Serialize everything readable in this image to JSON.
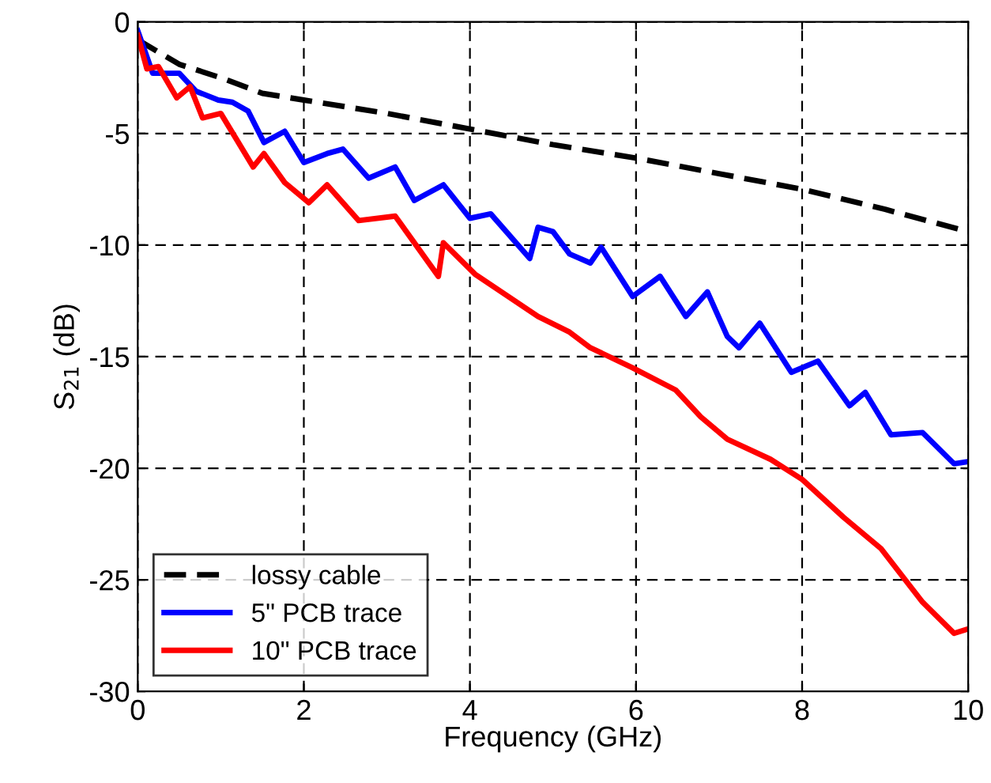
{
  "chart_data": {
    "type": "line",
    "xlabel": "Frequency (GHz)",
    "ylabel": "S$_{21}$ (dB)",
    "xlim": [
      0,
      10
    ],
    "ylim": [
      -30,
      0
    ],
    "xticks": [
      0,
      2,
      4,
      6,
      8,
      10
    ],
    "yticks": [
      -30,
      -25,
      -20,
      -15,
      -10,
      -5,
      0
    ],
    "grid": true,
    "legend": "bottom left",
    "marker": "none",
    "series": [
      {
        "name": "lossy cable",
        "color": "#000000",
        "line_style": "dashed",
        "x": [
          0,
          0.5,
          1,
          1.5,
          2,
          3,
          4,
          5,
          6,
          7,
          8,
          9,
          10
        ],
        "values": [
          -0.8,
          -1.9,
          -2.5,
          -3.2,
          -3.5,
          -4.1,
          -4.8,
          -5.5,
          -6.1,
          -6.8,
          -7.5,
          -8.4,
          -9.4
        ]
      },
      {
        "name": "5\" PCB trace",
        "color": "#0000ff",
        "line_style": "solid",
        "x": [
          0,
          0.18,
          0.5,
          0.7,
          0.97,
          1.14,
          1.33,
          1.52,
          1.77,
          2.0,
          2.28,
          2.47,
          2.78,
          3.1,
          3.33,
          3.68,
          4.0,
          4.25,
          4.72,
          4.82,
          5.0,
          5.2,
          5.45,
          5.58,
          5.96,
          6.29,
          6.6,
          6.86,
          7.1,
          7.24,
          7.49,
          7.87,
          8.19,
          8.57,
          8.76,
          9.07,
          9.45,
          9.83,
          10
        ],
        "values": [
          -0.4,
          -2.3,
          -2.3,
          -3.1,
          -3.5,
          -3.6,
          -4.0,
          -5.4,
          -4.9,
          -6.3,
          -5.9,
          -5.7,
          -7.0,
          -6.5,
          -8.0,
          -7.3,
          -8.8,
          -8.6,
          -10.6,
          -9.2,
          -9.4,
          -10.4,
          -10.8,
          -10.1,
          -12.3,
          -11.4,
          -13.2,
          -12.1,
          -14.1,
          -14.6,
          -13.5,
          -15.7,
          -15.2,
          -17.2,
          -16.6,
          -18.5,
          -18.4,
          -19.8,
          -19.7
        ]
      },
      {
        "name": "10\" PCB trace",
        "color": "#ff0000",
        "line_style": "solid",
        "x": [
          0,
          0.11,
          0.25,
          0.47,
          0.63,
          0.78,
          1.0,
          1.39,
          1.52,
          1.77,
          2.06,
          2.28,
          2.66,
          3.1,
          3.62,
          3.68,
          4.06,
          4.82,
          5.2,
          5.45,
          5.96,
          6.48,
          6.78,
          7.1,
          7.62,
          8.0,
          8.5,
          8.95,
          9.45,
          9.83,
          10
        ],
        "values": [
          -0.6,
          -2.1,
          -2.0,
          -3.4,
          -2.9,
          -4.3,
          -4.1,
          -6.5,
          -5.9,
          -7.2,
          -8.1,
          -7.3,
          -8.9,
          -8.7,
          -11.4,
          -9.9,
          -11.3,
          -13.2,
          -13.9,
          -14.6,
          -15.5,
          -16.5,
          -17.7,
          -18.7,
          -19.6,
          -20.5,
          -22.2,
          -23.6,
          -26.0,
          -27.4,
          -27.2
        ]
      }
    ]
  }
}
